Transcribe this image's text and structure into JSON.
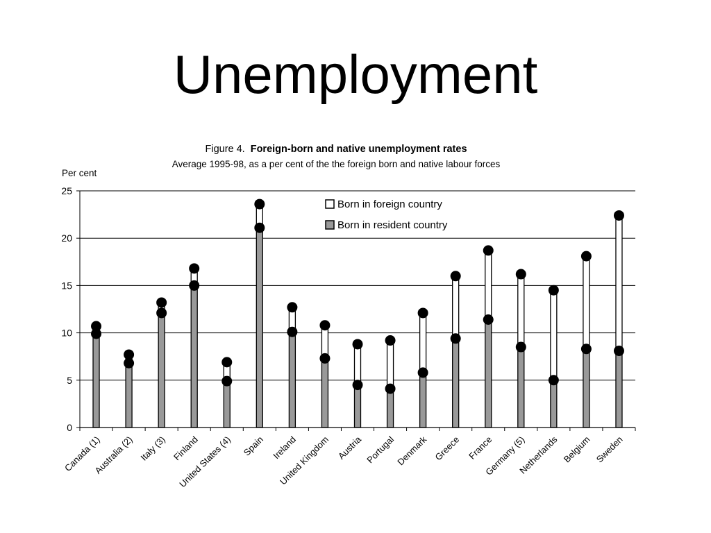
{
  "slide": {
    "title": "Unemployment"
  },
  "chart_data": {
    "type": "dumbbell",
    "figure_label": "Figure 4.",
    "title": "Foreign-born and native unemployment rates",
    "subtitle": "Average 1995-98, as a per cent of the the foreign born and native labour forces",
    "ylabel": "Per cent",
    "ylim": [
      0,
      25
    ],
    "yticks": [
      0,
      5,
      10,
      15,
      20,
      25
    ],
    "grid": true,
    "legend_position": "top-center",
    "categories": [
      "Canada (1)",
      "Australia (2)",
      "Italy (3)",
      "Finland",
      "United States (4)",
      "Spain",
      "Ireland",
      "United Kingdom",
      "Austria",
      "Portugal",
      "Denmark",
      "Greece",
      "France",
      "Germany (5)",
      "Netherlands",
      "Belgium",
      "Sweden"
    ],
    "series": [
      {
        "name": "Born in foreign country",
        "color": "#ffffff",
        "values": [
          10.7,
          7.7,
          13.2,
          16.8,
          6.9,
          23.6,
          12.7,
          10.8,
          8.8,
          9.2,
          12.1,
          16.0,
          18.7,
          16.2,
          14.5,
          18.1,
          22.4
        ]
      },
      {
        "name": "Born in resident country",
        "color": "#999999",
        "values": [
          9.9,
          6.8,
          12.1,
          15.0,
          4.9,
          21.1,
          10.1,
          7.3,
          4.5,
          4.1,
          5.8,
          9.4,
          11.4,
          8.5,
          5.0,
          8.3,
          8.1
        ]
      }
    ]
  }
}
